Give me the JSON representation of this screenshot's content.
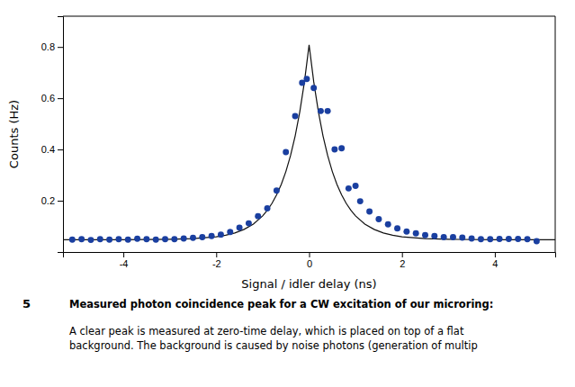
{
  "chart_data": {
    "type": "scatter",
    "x_label": "Signal / idler delay (ns)",
    "y_label": "Counts (Hz)",
    "xlim": [
      -5.3,
      5.3
    ],
    "ylim": [
      0.0,
      0.92
    ],
    "xticks": [
      -4,
      -2,
      0,
      2,
      4
    ],
    "yticks": [
      0.2,
      0.4,
      0.6,
      0.8
    ],
    "grid": false,
    "annotations": [
      "5",
      "Measured photon coincidence peak for a CW excitation of our microring:",
      "A clear peak is measured at zero-time delay, which is placed on top of a flat\nbackground. The background is caused by noise photons (generation of multip"
    ],
    "series": [
      {
        "type": "line",
        "color": "#111111",
        "line_style": "solid",
        "x": [
          -5.3,
          -4,
          -3,
          -2.5,
          -2,
          -1.8,
          -1.6,
          -1.4,
          -1.2,
          -1,
          -0.9,
          -0.8,
          -0.7,
          -0.6,
          -0.5,
          -0.4,
          -0.3,
          -0.2,
          -0.1,
          0,
          0.1,
          0.2,
          0.3,
          0.4,
          0.5,
          0.6,
          0.7,
          0.8,
          0.9,
          1,
          1.2,
          1.4,
          1.6,
          1.8,
          2,
          2.5,
          3,
          4,
          5.3
        ],
        "values": [
          0.04801,
          0.04817,
          0.0494,
          0.05199,
          0.0594,
          0.06535,
          0.0744,
          0.08818,
          0.10915,
          0.14107,
          0.16281,
          0.18964,
          0.22275,
          0.26357,
          0.31396,
          0.3761,
          0.45277,
          0.54736,
          0.66404,
          0.808,
          0.66404,
          0.54736,
          0.45277,
          0.3761,
          0.31396,
          0.26357,
          0.22275,
          0.18964,
          0.16281,
          0.14107,
          0.10915,
          0.08818,
          0.0744,
          0.06535,
          0.0594,
          0.05199,
          0.0494,
          0.04817,
          0.04801
        ]
      },
      {
        "type": "scatter",
        "color": "#1a3fa0",
        "marker": "circle",
        "x": [
          -5.1,
          -4.9,
          -4.7,
          -4.5,
          -4.3,
          -4.1,
          -3.9,
          -3.7,
          -3.5,
          -3.3,
          -3.1,
          -2.9,
          -2.7,
          -2.5,
          -2.3,
          -2.1,
          -1.9,
          -1.7,
          -1.5,
          -1.3,
          -1.1,
          -0.9,
          -0.7,
          -0.5,
          -0.3,
          -0.15,
          -0.05,
          0.1,
          0.25,
          0.4,
          0.55,
          0.7,
          0.85,
          1.0,
          1.1,
          1.3,
          1.5,
          1.7,
          1.9,
          2.1,
          2.3,
          2.5,
          2.7,
          2.9,
          3.1,
          3.3,
          3.5,
          3.7,
          3.9,
          4.1,
          4.3,
          4.5,
          4.7,
          4.9
        ],
        "values": [
          0.048,
          0.05,
          0.047,
          0.05,
          0.048,
          0.05,
          0.048,
          0.052,
          0.05,
          0.048,
          0.05,
          0.05,
          0.053,
          0.055,
          0.058,
          0.062,
          0.068,
          0.078,
          0.095,
          0.112,
          0.14,
          0.17,
          0.24,
          0.39,
          0.53,
          0.66,
          0.675,
          0.64,
          0.55,
          0.55,
          0.4,
          0.405,
          0.248,
          0.258,
          0.198,
          0.158,
          0.128,
          0.108,
          0.092,
          0.08,
          0.073,
          0.066,
          0.062,
          0.058,
          0.058,
          0.056,
          0.053,
          0.05,
          0.05,
          0.051,
          0.051,
          0.051,
          0.05,
          0.042
        ]
      }
    ]
  }
}
